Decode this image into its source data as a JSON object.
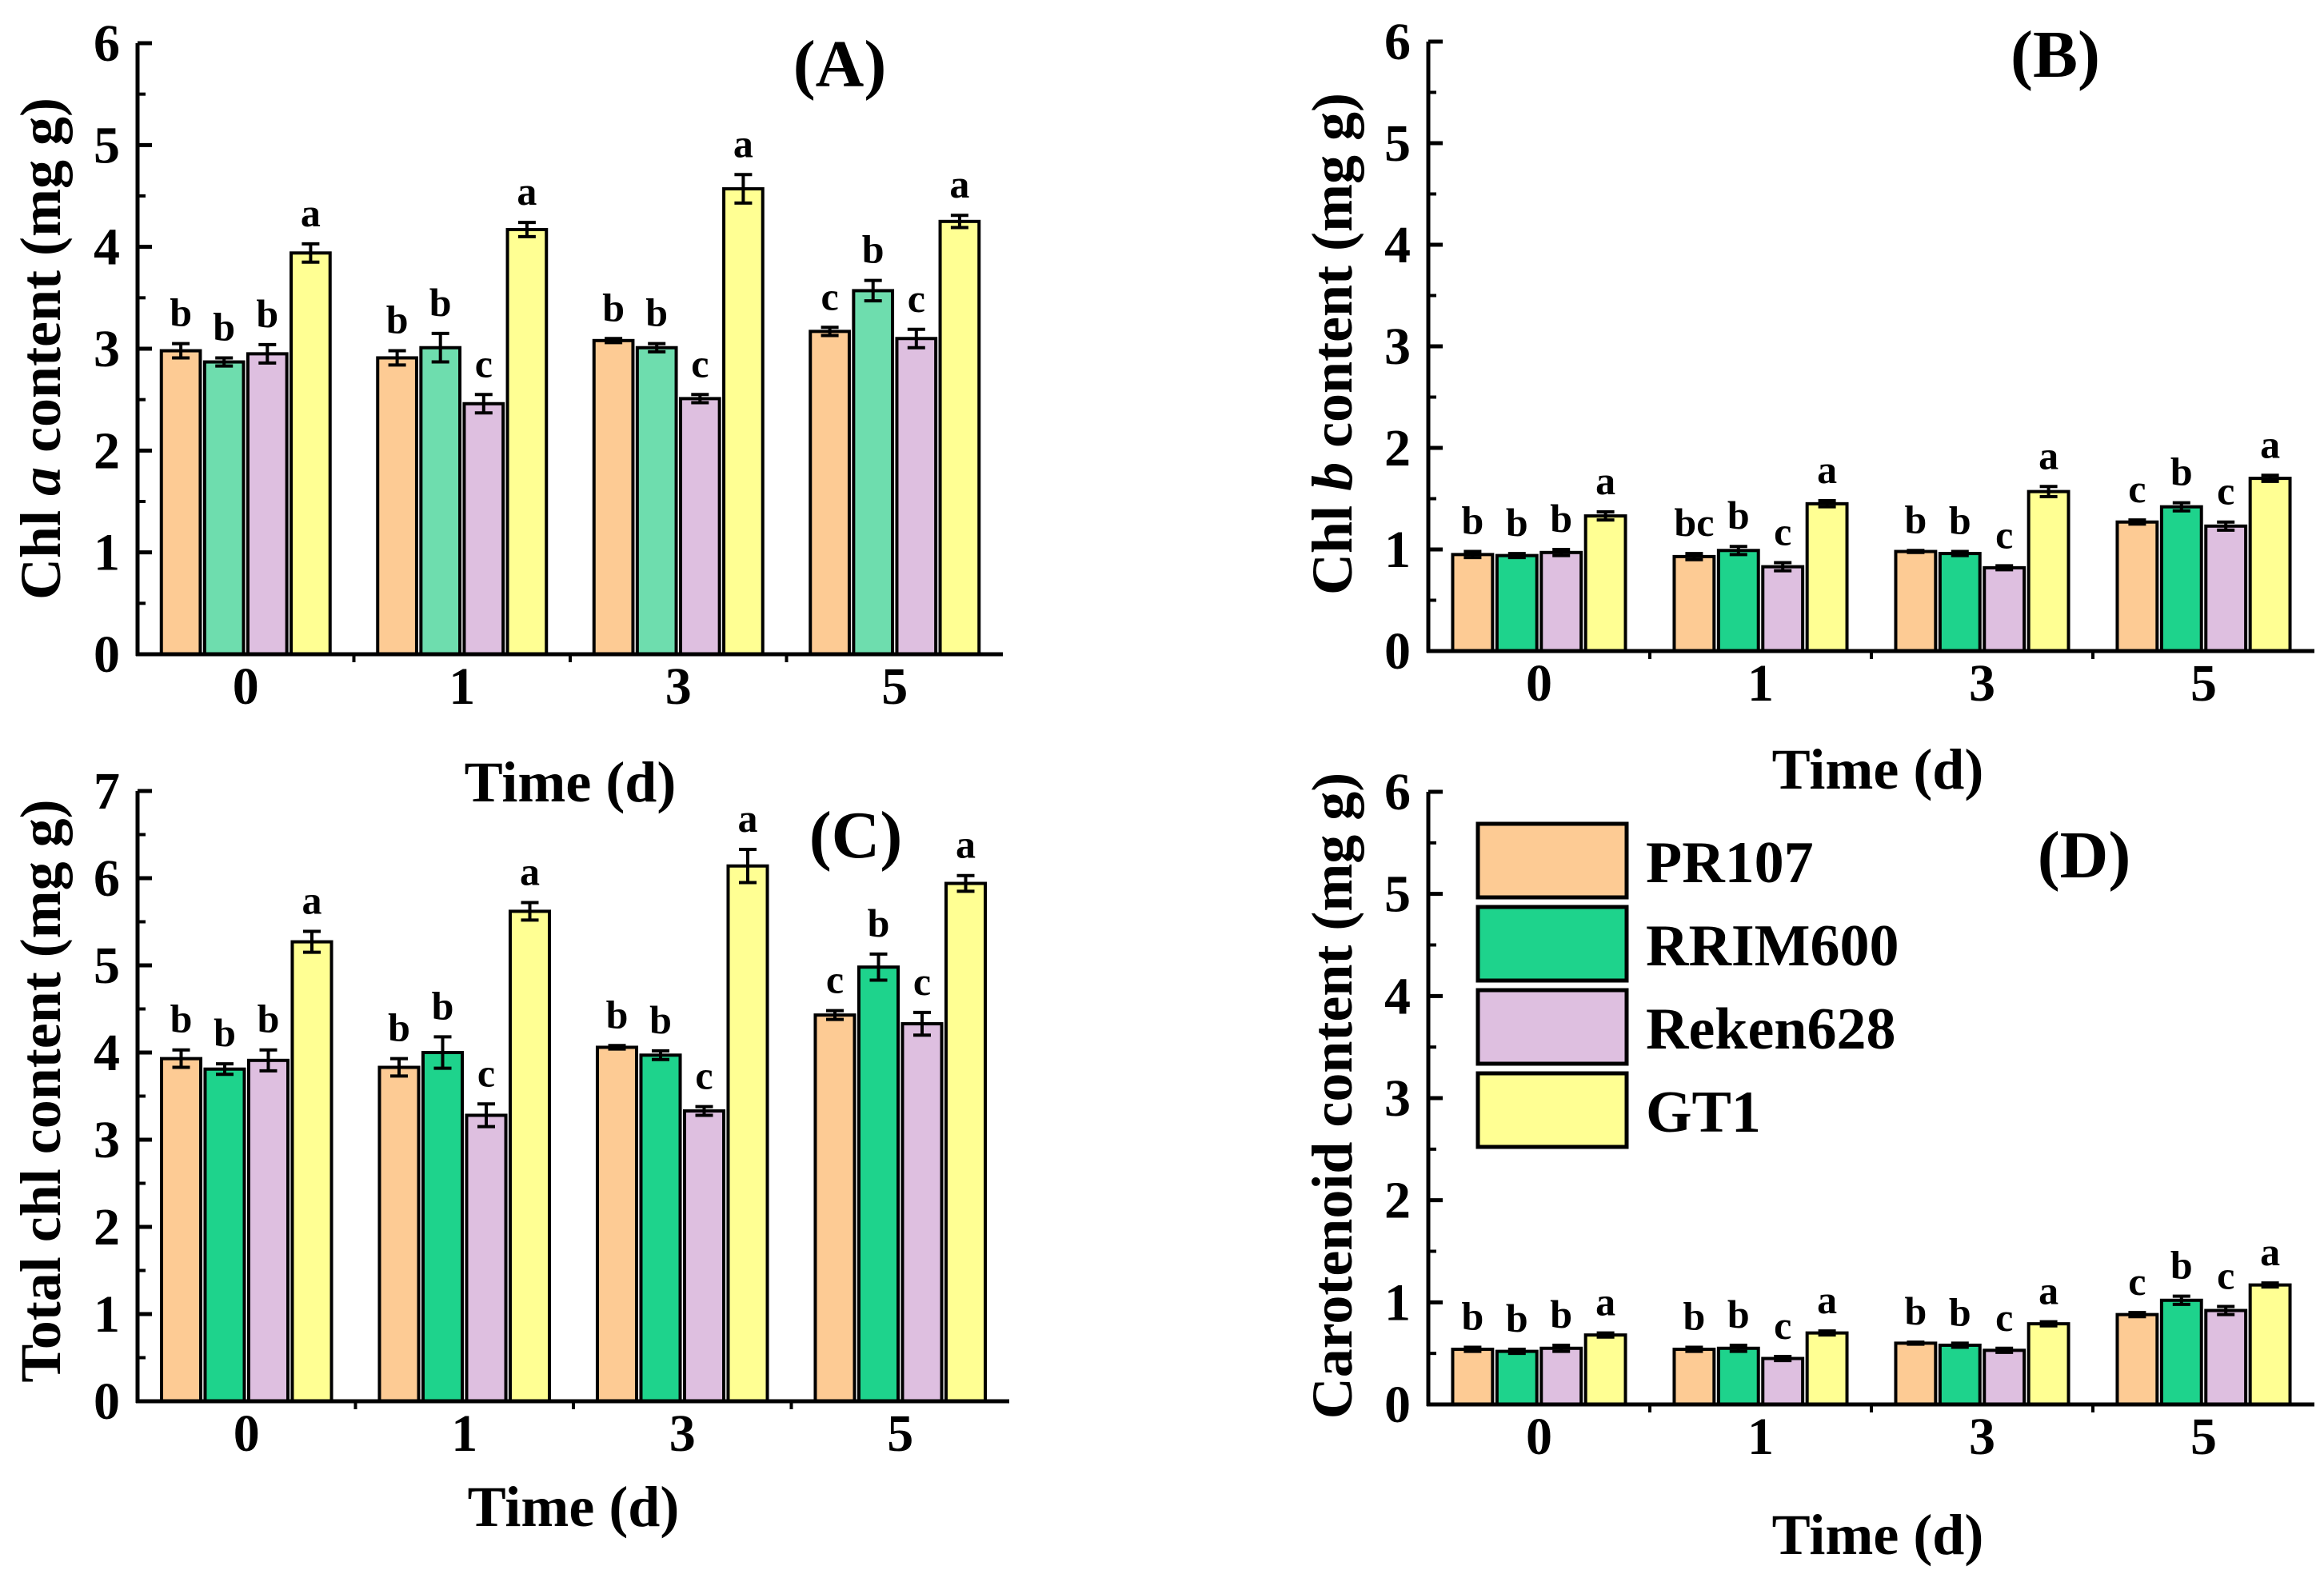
{
  "colors": {
    "PR107": "#FDCB94",
    "RRIM600_panelA": "#6EDDAE",
    "RRIM600": "#1ED38C",
    "Reken628": "#DEBFE0",
    "GT1": "#FFFF93",
    "axis": "#000000",
    "errorbar": "#000000"
  },
  "legend": {
    "entries": [
      {
        "name": "PR107",
        "color": "#FDCB94"
      },
      {
        "name": "RRIM600",
        "color": "#1ED38C"
      },
      {
        "name": "Reken628",
        "color": "#DEBFE0"
      },
      {
        "name": "GT1",
        "color": "#FFFF93"
      }
    ]
  },
  "chart_data": [
    {
      "type": "bar",
      "panel": "(A)",
      "title": "(A)",
      "ylabel": "Chl a content (mg g)",
      "ylabel_parts": [
        "Chl ",
        "a",
        " content (mg g)"
      ],
      "xlabel": "Time (d)",
      "categories": [
        "0",
        "1",
        "3",
        "5"
      ],
      "ylim": [
        0,
        6
      ],
      "yticks": [
        "0",
        "1",
        "2",
        "3",
        "4",
        "5",
        "6"
      ],
      "series": [
        {
          "name": "PR107",
          "values": [
            2.98,
            2.91,
            3.08,
            3.17
          ],
          "errors": [
            0.07,
            0.07,
            0.02,
            0.04
          ],
          "letters": [
            "b",
            "b",
            "b",
            "c"
          ]
        },
        {
          "name": "RRIM600",
          "values": [
            2.87,
            3.01,
            3.01,
            3.57
          ],
          "errors": [
            0.04,
            0.14,
            0.04,
            0.1
          ],
          "letters": [
            "b",
            "b",
            "b",
            "b"
          ]
        },
        {
          "name": "Reken628",
          "values": [
            2.95,
            2.46,
            2.51,
            3.1
          ],
          "errors": [
            0.09,
            0.09,
            0.04,
            0.09
          ],
          "letters": [
            "b",
            "c",
            "c",
            "c"
          ]
        },
        {
          "name": "GT1",
          "values": [
            3.94,
            4.17,
            4.57,
            4.25
          ],
          "errors": [
            0.09,
            0.07,
            0.14,
            0.06
          ],
          "letters": [
            "a",
            "a",
            "a",
            "a"
          ]
        }
      ]
    },
    {
      "type": "bar",
      "panel": "(B)",
      "title": "(B)",
      "ylabel": "Chl b content (mg g)",
      "ylabel_parts": [
        "Chl ",
        "b",
        " content (mg g)"
      ],
      "xlabel": "Time (d)",
      "categories": [
        "0",
        "1",
        "3",
        "5"
      ],
      "ylim": [
        0,
        6
      ],
      "yticks": [
        "0",
        "1",
        "2",
        "3",
        "4",
        "5",
        "6"
      ],
      "series": [
        {
          "name": "PR107",
          "values": [
            0.95,
            0.93,
            0.98,
            1.27
          ],
          "errors": [
            0.03,
            0.03,
            0.01,
            0.02
          ],
          "letters": [
            "b",
            "bc",
            "b",
            "c"
          ]
        },
        {
          "name": "RRIM600",
          "values": [
            0.94,
            0.99,
            0.96,
            1.42
          ],
          "errors": [
            0.02,
            0.04,
            0.02,
            0.04
          ],
          "letters": [
            "b",
            "b",
            "b",
            "b"
          ]
        },
        {
          "name": "Reken628",
          "values": [
            0.97,
            0.83,
            0.82,
            1.23
          ],
          "errors": [
            0.03,
            0.04,
            0.02,
            0.04
          ],
          "letters": [
            "b",
            "c",
            "c",
            "c"
          ]
        },
        {
          "name": "GT1",
          "values": [
            1.33,
            1.45,
            1.57,
            1.7
          ],
          "errors": [
            0.04,
            0.03,
            0.05,
            0.03
          ],
          "letters": [
            "a",
            "a",
            "a",
            "a"
          ]
        }
      ]
    },
    {
      "type": "bar",
      "panel": "(C)",
      "title": "(C)",
      "ylabel": "Total chl content (mg g)",
      "ylabel_parts": [
        "Total chl content (mg g)"
      ],
      "xlabel": "Time (d)",
      "categories": [
        "0",
        "1",
        "3",
        "5"
      ],
      "ylim": [
        0,
        7
      ],
      "yticks": [
        "0",
        "1",
        "2",
        "3",
        "4",
        "5",
        "6",
        "7"
      ],
      "series": [
        {
          "name": "PR107",
          "values": [
            3.93,
            3.83,
            4.06,
            4.43
          ],
          "errors": [
            0.1,
            0.1,
            0.02,
            0.05
          ],
          "letters": [
            "b",
            "b",
            "b",
            "c"
          ]
        },
        {
          "name": "RRIM600",
          "values": [
            3.81,
            4.0,
            3.97,
            4.98
          ],
          "errors": [
            0.06,
            0.18,
            0.05,
            0.15
          ],
          "letters": [
            "b",
            "b",
            "b",
            "b"
          ]
        },
        {
          "name": "Reken628",
          "values": [
            3.91,
            3.28,
            3.33,
            4.33
          ],
          "errors": [
            0.12,
            0.13,
            0.05,
            0.13
          ],
          "letters": [
            "b",
            "c",
            "c",
            "c"
          ]
        },
        {
          "name": "GT1",
          "values": [
            5.27,
            5.62,
            6.14,
            5.94
          ],
          "errors": [
            0.12,
            0.1,
            0.19,
            0.09
          ],
          "letters": [
            "a",
            "a",
            "a",
            "a"
          ]
        }
      ]
    },
    {
      "type": "bar",
      "panel": "(D)",
      "title": "(D)",
      "ylabel": "Carotenoid content (mg g)",
      "ylabel_parts": [
        "Carotenoid content (mg g)"
      ],
      "xlabel": "Time (d)",
      "categories": [
        "0",
        "1",
        "3",
        "5"
      ],
      "ylim": [
        0,
        6
      ],
      "yticks": [
        "0",
        "1",
        "2",
        "3",
        "4",
        "5",
        "6"
      ],
      "series": [
        {
          "name": "PR107",
          "values": [
            0.54,
            0.54,
            0.6,
            0.88
          ],
          "errors": [
            0.02,
            0.02,
            0.01,
            0.02
          ],
          "letters": [
            "b",
            "b",
            "b",
            "c"
          ]
        },
        {
          "name": "RRIM600",
          "values": [
            0.52,
            0.55,
            0.58,
            1.02
          ],
          "errors": [
            0.02,
            0.03,
            0.02,
            0.04
          ],
          "letters": [
            "b",
            "b",
            "b",
            "b"
          ]
        },
        {
          "name": "Reken628",
          "values": [
            0.55,
            0.45,
            0.53,
            0.92
          ],
          "errors": [
            0.03,
            0.02,
            0.02,
            0.04
          ],
          "letters": [
            "b",
            "c",
            "c",
            "c"
          ]
        },
        {
          "name": "GT1",
          "values": [
            0.68,
            0.7,
            0.79,
            1.17
          ],
          "errors": [
            0.02,
            0.02,
            0.02,
            0.02
          ],
          "letters": [
            "a",
            "a",
            "a",
            "a"
          ]
        }
      ]
    }
  ]
}
